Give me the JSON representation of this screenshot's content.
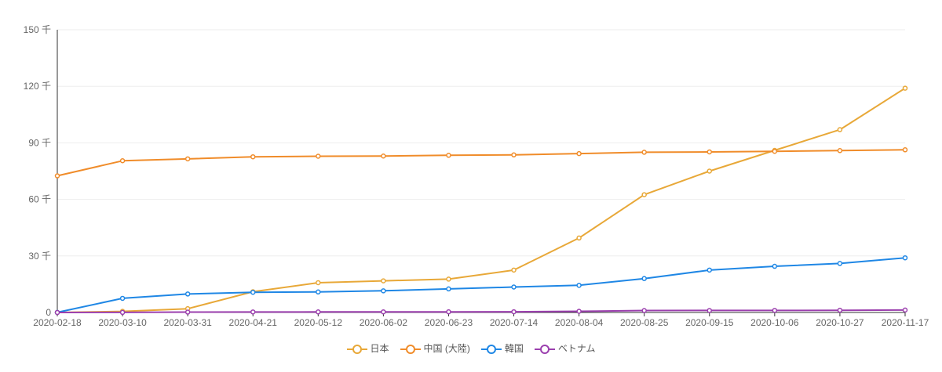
{
  "chart_data": {
    "type": "line",
    "categories": [
      "2020-02-18",
      "2020-03-10",
      "2020-03-31",
      "2020-04-21",
      "2020-05-12",
      "2020-06-02",
      "2020-06-23",
      "2020-07-14",
      "2020-08-04",
      "2020-08-25",
      "2020-09-15",
      "2020-10-06",
      "2020-10-27",
      "2020-11-17"
    ],
    "yticks": [
      "0",
      "30 千",
      "60 千",
      "90 千",
      "120 千",
      "150 千"
    ],
    "ylim": [
      0,
      150
    ],
    "series": [
      {
        "name": "日本",
        "color": "#e8a838",
        "values": [
          0.02,
          0.6,
          2.0,
          11.0,
          15.8,
          16.8,
          17.7,
          22.5,
          39.5,
          62.5,
          75.0,
          86.0,
          97.0,
          119.0
        ]
      },
      {
        "name": "中国 (大陸)",
        "color": "#f08c2a",
        "values": [
          72.5,
          80.5,
          81.5,
          82.6,
          82.9,
          83.0,
          83.4,
          83.6,
          84.3,
          85.0,
          85.2,
          85.5,
          85.9,
          86.3
        ]
      },
      {
        "name": "韓国",
        "color": "#1f87e5",
        "values": [
          0.03,
          7.5,
          9.8,
          10.7,
          10.9,
          11.5,
          12.5,
          13.5,
          14.4,
          18.0,
          22.5,
          24.5,
          26.0,
          29.0
        ]
      },
      {
        "name": "ベトナム",
        "color": "#9b3fae",
        "values": [
          0.02,
          0.03,
          0.2,
          0.27,
          0.29,
          0.33,
          0.35,
          0.37,
          0.62,
          1.03,
          1.06,
          1.1,
          1.17,
          1.3
        ]
      }
    ]
  }
}
